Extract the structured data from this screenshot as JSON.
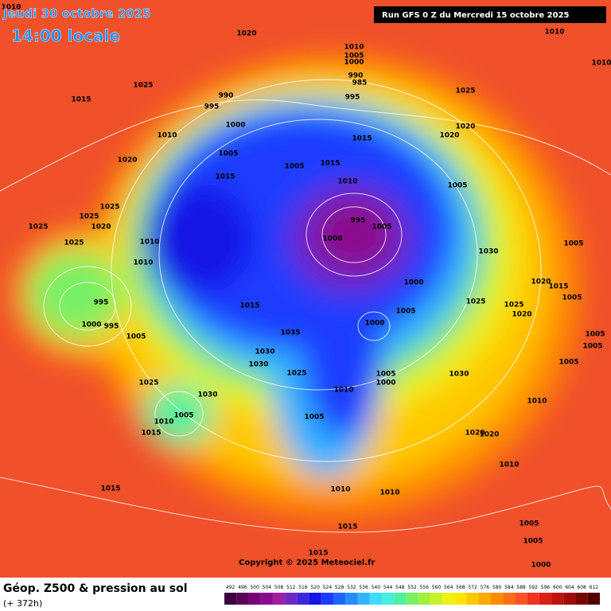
{
  "header": {
    "date": "Jeudi 30 octobre 2025",
    "time": "14:00 locale",
    "run": "Run GFS 0 Z du Mercredi 15 octobre 2025"
  },
  "map": {
    "isobar_labels": [
      "1010",
      "1020",
      "1010",
      "1010",
      "1025",
      "1015",
      "1010",
      "1005",
      "1000",
      "990",
      "985",
      "995",
      "990",
      "995",
      "1000",
      "1010",
      "1005",
      "1020",
      "1015",
      "1005",
      "1015",
      "1015",
      "1010",
      "1005",
      "995",
      "1005",
      "1000",
      "1000",
      "1005",
      "1000",
      "1030",
      "1025",
      "1020",
      "1015",
      "1005",
      "1025",
      "1020",
      "1005",
      "1025",
      "1020",
      "1020",
      "1025",
      "1025",
      "1020",
      "1025",
      "1025",
      "1010",
      "1010",
      "995",
      "1000",
      "995",
      "1005",
      "1015",
      "1035",
      "1030",
      "1030",
      "1025",
      "1030",
      "1025",
      "1005",
      "1010",
      "1015",
      "1010",
      "1005",
      "1000",
      "1030",
      "1005",
      "1020",
      "1020",
      "1010",
      "1010",
      "1010",
      "1010",
      "1015",
      "1015",
      "1005",
      "1005",
      "1000",
      "1015",
      "1005",
      "1005",
      "1005"
    ]
  },
  "footer": {
    "copyright": "Copyright © 2025 Meteociel.fr",
    "title": "Géop. Z500 & pression au sol",
    "lead": "(+ 372h)"
  },
  "scale": {
    "values": [
      492,
      496,
      500,
      504,
      508,
      512,
      516,
      520,
      524,
      528,
      532,
      536,
      540,
      544,
      548,
      552,
      556,
      560,
      564,
      568,
      572,
      576,
      580,
      584,
      588,
      592,
      596,
      600,
      604,
      608,
      612
    ],
    "colors": [
      "#3c003c",
      "#5a005a",
      "#780078",
      "#8c0a8c",
      "#a01ea0",
      "#6e28c8",
      "#3c28dc",
      "#1414e6",
      "#1e3cff",
      "#1e64ff",
      "#288cff",
      "#32b4ff",
      "#3cdcff",
      "#46f0dc",
      "#50f0a0",
      "#78f064",
      "#a0f03c",
      "#c8f028",
      "#f0f014",
      "#ffe600",
      "#ffc800",
      "#ffaa00",
      "#ff8c00",
      "#ff6e14",
      "#ff5028",
      "#f0321e",
      "#dc1e14",
      "#be140a",
      "#a00a0a",
      "#780505",
      "#500000"
    ]
  }
}
